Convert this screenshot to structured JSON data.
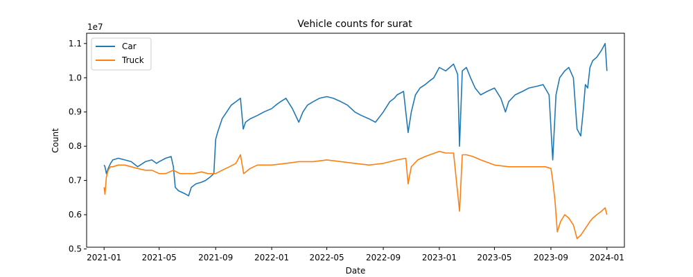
{
  "chart_data": {
    "type": "line",
    "title": "Vehicle counts for surat",
    "xlabel": "Date",
    "ylabel": "Count",
    "y_offset_label": "1e7",
    "xlim": [
      "2020-11-24",
      "2024-02-08"
    ],
    "ylim": [
      0.505,
      1.13
    ],
    "y_ticks": [
      0.5,
      0.6,
      0.7,
      0.8,
      0.9,
      1.0,
      1.1
    ],
    "y_tick_labels": [
      "0.5",
      "0.6",
      "0.7",
      "0.8",
      "0.9",
      "1.0",
      "1.1"
    ],
    "x_ticks": [
      "2021-01-01",
      "2021-05-01",
      "2021-09-01",
      "2022-01-01",
      "2022-05-01",
      "2022-09-01",
      "2023-01-01",
      "2023-05-01",
      "2023-09-01",
      "2024-01-01"
    ],
    "x_tick_labels": [
      "2021-01",
      "2021-05",
      "2021-09",
      "2022-01",
      "2022-05",
      "2022-09",
      "2023-01",
      "2023-05",
      "2023-09",
      "2024-01"
    ],
    "legend_position": "upper-left",
    "grid": false,
    "series": [
      {
        "name": "Car",
        "color": "#1f77b4",
        "x": [
          "2021-01-01",
          "2021-01-03",
          "2021-01-06",
          "2021-01-10",
          "2021-01-15",
          "2021-01-20",
          "2021-02-01",
          "2021-02-15",
          "2021-03-01",
          "2021-03-15",
          "2021-04-01",
          "2021-04-15",
          "2021-04-25",
          "2021-05-01",
          "2021-05-15",
          "2021-05-27",
          "2021-06-01",
          "2021-06-05",
          "2021-06-12",
          "2021-06-20",
          "2021-06-28",
          "2021-07-04",
          "2021-07-10",
          "2021-07-20",
          "2021-08-01",
          "2021-08-10",
          "2021-08-20",
          "2021-08-28",
          "2021-09-01",
          "2021-09-05",
          "2021-09-15",
          "2021-09-25",
          "2021-10-05",
          "2021-10-15",
          "2021-10-25",
          "2021-10-31",
          "2021-11-05",
          "2021-11-15",
          "2021-12-01",
          "2021-12-15",
          "2022-01-01",
          "2022-01-10",
          "2022-01-20",
          "2022-02-01",
          "2022-02-15",
          "2022-03-01",
          "2022-03-10",
          "2022-03-20",
          "2022-04-01",
          "2022-04-15",
          "2022-05-01",
          "2022-05-15",
          "2022-06-01",
          "2022-06-15",
          "2022-07-01",
          "2022-07-15",
          "2022-08-01",
          "2022-08-15",
          "2022-09-01",
          "2022-09-15",
          "2022-09-25",
          "2022-10-01",
          "2022-10-15",
          "2022-10-25",
          "2022-11-01",
          "2022-11-10",
          "2022-11-20",
          "2022-12-01",
          "2022-12-10",
          "2022-12-20",
          "2023-01-01",
          "2023-01-15",
          "2023-02-01",
          "2023-02-10",
          "2023-02-14",
          "2023-02-20",
          "2023-03-01",
          "2023-03-10",
          "2023-03-20",
          "2023-04-01",
          "2023-04-15",
          "2023-05-01",
          "2023-05-15",
          "2023-05-25",
          "2023-06-01",
          "2023-06-15",
          "2023-07-01",
          "2023-07-15",
          "2023-08-01",
          "2023-08-15",
          "2023-08-28",
          "2023-09-05",
          "2023-09-12",
          "2023-09-20",
          "2023-10-01",
          "2023-10-10",
          "2023-10-20",
          "2023-10-28",
          "2023-11-05",
          "2023-11-10",
          "2023-11-15",
          "2023-11-20",
          "2023-11-25",
          "2023-12-01",
          "2023-12-10",
          "2023-12-20",
          "2023-12-28",
          "2024-01-01"
        ],
        "values": [
          0.745,
          0.74,
          0.72,
          0.735,
          0.75,
          0.76,
          0.765,
          0.76,
          0.755,
          0.74,
          0.755,
          0.76,
          0.75,
          0.755,
          0.765,
          0.77,
          0.74,
          0.68,
          0.67,
          0.665,
          0.66,
          0.655,
          0.68,
          0.69,
          0.695,
          0.7,
          0.71,
          0.72,
          0.82,
          0.84,
          0.88,
          0.9,
          0.92,
          0.93,
          0.94,
          0.85,
          0.87,
          0.88,
          0.89,
          0.9,
          0.91,
          0.92,
          0.93,
          0.94,
          0.91,
          0.87,
          0.9,
          0.92,
          0.93,
          0.94,
          0.945,
          0.94,
          0.93,
          0.92,
          0.9,
          0.89,
          0.88,
          0.87,
          0.9,
          0.93,
          0.94,
          0.95,
          0.96,
          0.84,
          0.9,
          0.95,
          0.97,
          0.98,
          0.99,
          1.0,
          1.03,
          1.02,
          1.04,
          1.01,
          0.8,
          1.02,
          1.03,
          1.0,
          0.97,
          0.95,
          0.96,
          0.97,
          0.94,
          0.9,
          0.93,
          0.95,
          0.96,
          0.97,
          0.975,
          0.98,
          0.95,
          0.76,
          0.95,
          1.0,
          1.02,
          1.03,
          1.0,
          0.85,
          0.83,
          0.9,
          0.98,
          0.97,
          1.03,
          1.05,
          1.06,
          1.08,
          1.1,
          1.02
        ]
      },
      {
        "name": "Truck",
        "color": "#ff7f0e",
        "x": [
          "2021-01-01",
          "2021-01-03",
          "2021-01-06",
          "2021-01-10",
          "2021-01-15",
          "2021-01-20",
          "2021-02-01",
          "2021-02-15",
          "2021-03-01",
          "2021-03-15",
          "2021-04-01",
          "2021-04-15",
          "2021-05-01",
          "2021-05-15",
          "2021-06-01",
          "2021-06-15",
          "2021-07-01",
          "2021-07-15",
          "2021-08-01",
          "2021-08-15",
          "2021-09-01",
          "2021-09-15",
          "2021-10-01",
          "2021-10-15",
          "2021-10-25",
          "2021-11-01",
          "2021-11-15",
          "2021-12-01",
          "2022-01-01",
          "2022-02-01",
          "2022-03-01",
          "2022-04-01",
          "2022-05-01",
          "2022-06-01",
          "2022-07-01",
          "2022-08-01",
          "2022-09-01",
          "2022-10-01",
          "2022-10-20",
          "2022-10-25",
          "2022-11-01",
          "2022-11-15",
          "2022-12-01",
          "2023-01-01",
          "2023-01-15",
          "2023-02-01",
          "2023-02-14",
          "2023-02-20",
          "2023-03-01",
          "2023-03-15",
          "2023-04-01",
          "2023-05-01",
          "2023-06-01",
          "2023-07-01",
          "2023-08-01",
          "2023-08-20",
          "2023-09-01",
          "2023-09-05",
          "2023-09-10",
          "2023-09-15",
          "2023-09-22",
          "2023-10-01",
          "2023-10-10",
          "2023-10-20",
          "2023-10-28",
          "2023-11-05",
          "2023-11-15",
          "2023-11-25",
          "2023-12-01",
          "2023-12-10",
          "2023-12-20",
          "2023-12-28",
          "2024-01-01"
        ],
        "values": [
          0.68,
          0.66,
          0.71,
          0.73,
          0.74,
          0.74,
          0.745,
          0.745,
          0.74,
          0.735,
          0.73,
          0.73,
          0.72,
          0.72,
          0.73,
          0.72,
          0.72,
          0.72,
          0.725,
          0.72,
          0.72,
          0.73,
          0.74,
          0.75,
          0.775,
          0.72,
          0.735,
          0.745,
          0.745,
          0.75,
          0.755,
          0.755,
          0.76,
          0.755,
          0.75,
          0.745,
          0.75,
          0.76,
          0.765,
          0.69,
          0.74,
          0.76,
          0.77,
          0.785,
          0.78,
          0.78,
          0.61,
          0.775,
          0.775,
          0.77,
          0.76,
          0.745,
          0.74,
          0.74,
          0.74,
          0.74,
          0.735,
          0.7,
          0.64,
          0.55,
          0.58,
          0.6,
          0.59,
          0.57,
          0.53,
          0.54,
          0.56,
          0.58,
          0.59,
          0.6,
          0.61,
          0.62,
          0.6
        ]
      }
    ]
  }
}
